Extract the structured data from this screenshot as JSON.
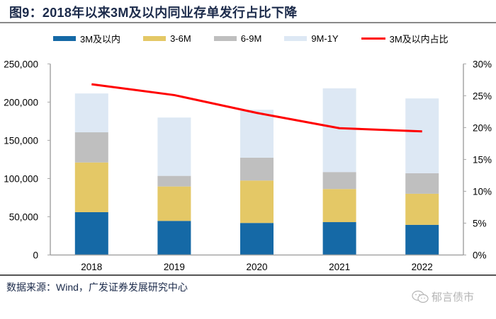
{
  "title": "图9：2018年以来3M及以内同业存单发行占比下降",
  "source": "数据来源：Wind，广发证券发展研究中心",
  "watermark": "郁言债市",
  "colors": {
    "3M及以内": "#1569a6",
    "3-6M": "#e4c866",
    "6-9M": "#bfbfbf",
    "9M-1Y": "#dde8f4",
    "3M及以内占比": "#ff0000"
  },
  "chart_data": {
    "type": "bar",
    "stacked": true,
    "title": "2018年以来3M及以内同业存单发行占比下降",
    "categories": [
      "2018",
      "2019",
      "2020",
      "2021",
      "2022"
    ],
    "series": [
      {
        "name": "3M及以内",
        "type": "bar",
        "axis": "left",
        "values": [
          56000,
          44600,
          41900,
          43000,
          39400
        ]
      },
      {
        "name": "3-6M",
        "type": "bar",
        "axis": "left",
        "values": [
          65000,
          45000,
          55500,
          43300,
          40700
        ]
      },
      {
        "name": "6-9M",
        "type": "bar",
        "axis": "left",
        "values": [
          39500,
          13900,
          29900,
          22200,
          26800
        ]
      },
      {
        "name": "9M-1Y",
        "type": "bar",
        "axis": "left",
        "values": [
          50800,
          76300,
          62700,
          109500,
          97900
        ]
      },
      {
        "name": "3M及以内占比",
        "type": "line",
        "axis": "right",
        "values": [
          26.8,
          25.1,
          22.3,
          19.9,
          19.4
        ]
      }
    ],
    "left_axis": {
      "min": 0,
      "max": 250000,
      "ticks": [
        "0",
        "50,000",
        "100,000",
        "150,000",
        "200,000",
        "250,000"
      ],
      "tick_values": [
        0,
        50000,
        100000,
        150000,
        200000,
        250000
      ]
    },
    "right_axis": {
      "min": 0,
      "max": 30,
      "ticks": [
        "0%",
        "5%",
        "10%",
        "15%",
        "20%",
        "25%",
        "30%"
      ],
      "tick_values": [
        0,
        5,
        10,
        15,
        20,
        25,
        30
      ]
    },
    "xlabel": "",
    "ylabel": "",
    "grid": false,
    "legend_position": "top"
  }
}
